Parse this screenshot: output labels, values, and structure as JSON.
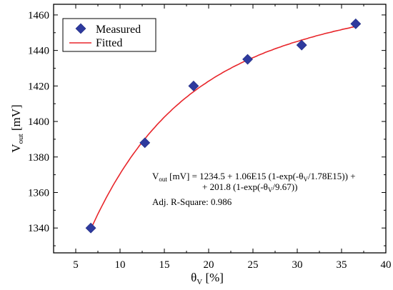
{
  "chart_data": {
    "type": "scatter",
    "xlabel": {
      "main": "θ",
      "sub": "V",
      "rest": " [%]"
    },
    "ylabel": {
      "main": "V",
      "sub": "out",
      "rest": " [mV]"
    },
    "xlim": [
      2.5,
      40
    ],
    "ylim": [
      1326,
      1466
    ],
    "xticks": [
      5,
      10,
      15,
      20,
      25,
      30,
      35,
      40
    ],
    "yticks": [
      1340,
      1360,
      1380,
      1400,
      1420,
      1440,
      1460
    ],
    "grid": false,
    "legend_position": "top-left",
    "series": [
      {
        "name": "Measured",
        "kind": "markers",
        "marker": "diamond",
        "color": "#2e3a9e",
        "x": [
          6.7,
          12.8,
          18.3,
          24.4,
          30.5,
          36.6
        ],
        "y": [
          1340,
          1388,
          1420,
          1435,
          1443,
          1455
        ]
      },
      {
        "name": "Fitted",
        "kind": "line",
        "color": "#e8262b",
        "equation": {
          "y0": 1234.5,
          "a1": 1060000000000000.0,
          "t1": 1780000000000000.0,
          "a2": 201.8,
          "t2": 9.67
        },
        "x_range": [
          6.7,
          36.6
        ]
      }
    ],
    "annotation": {
      "line1": {
        "v": "V",
        "vsub": "out",
        "a": " [mV] = 1234.5 + 1.06E15 (1-exp(-θ",
        "tsub": "V",
        "b": "/1.78E15)) +"
      },
      "line2": {
        "a": "+ 201.8 (1-exp(-θ",
        "tsub": "V",
        "b": "/9.67))"
      },
      "line3": "Adj. R-Square: 0.986"
    }
  }
}
